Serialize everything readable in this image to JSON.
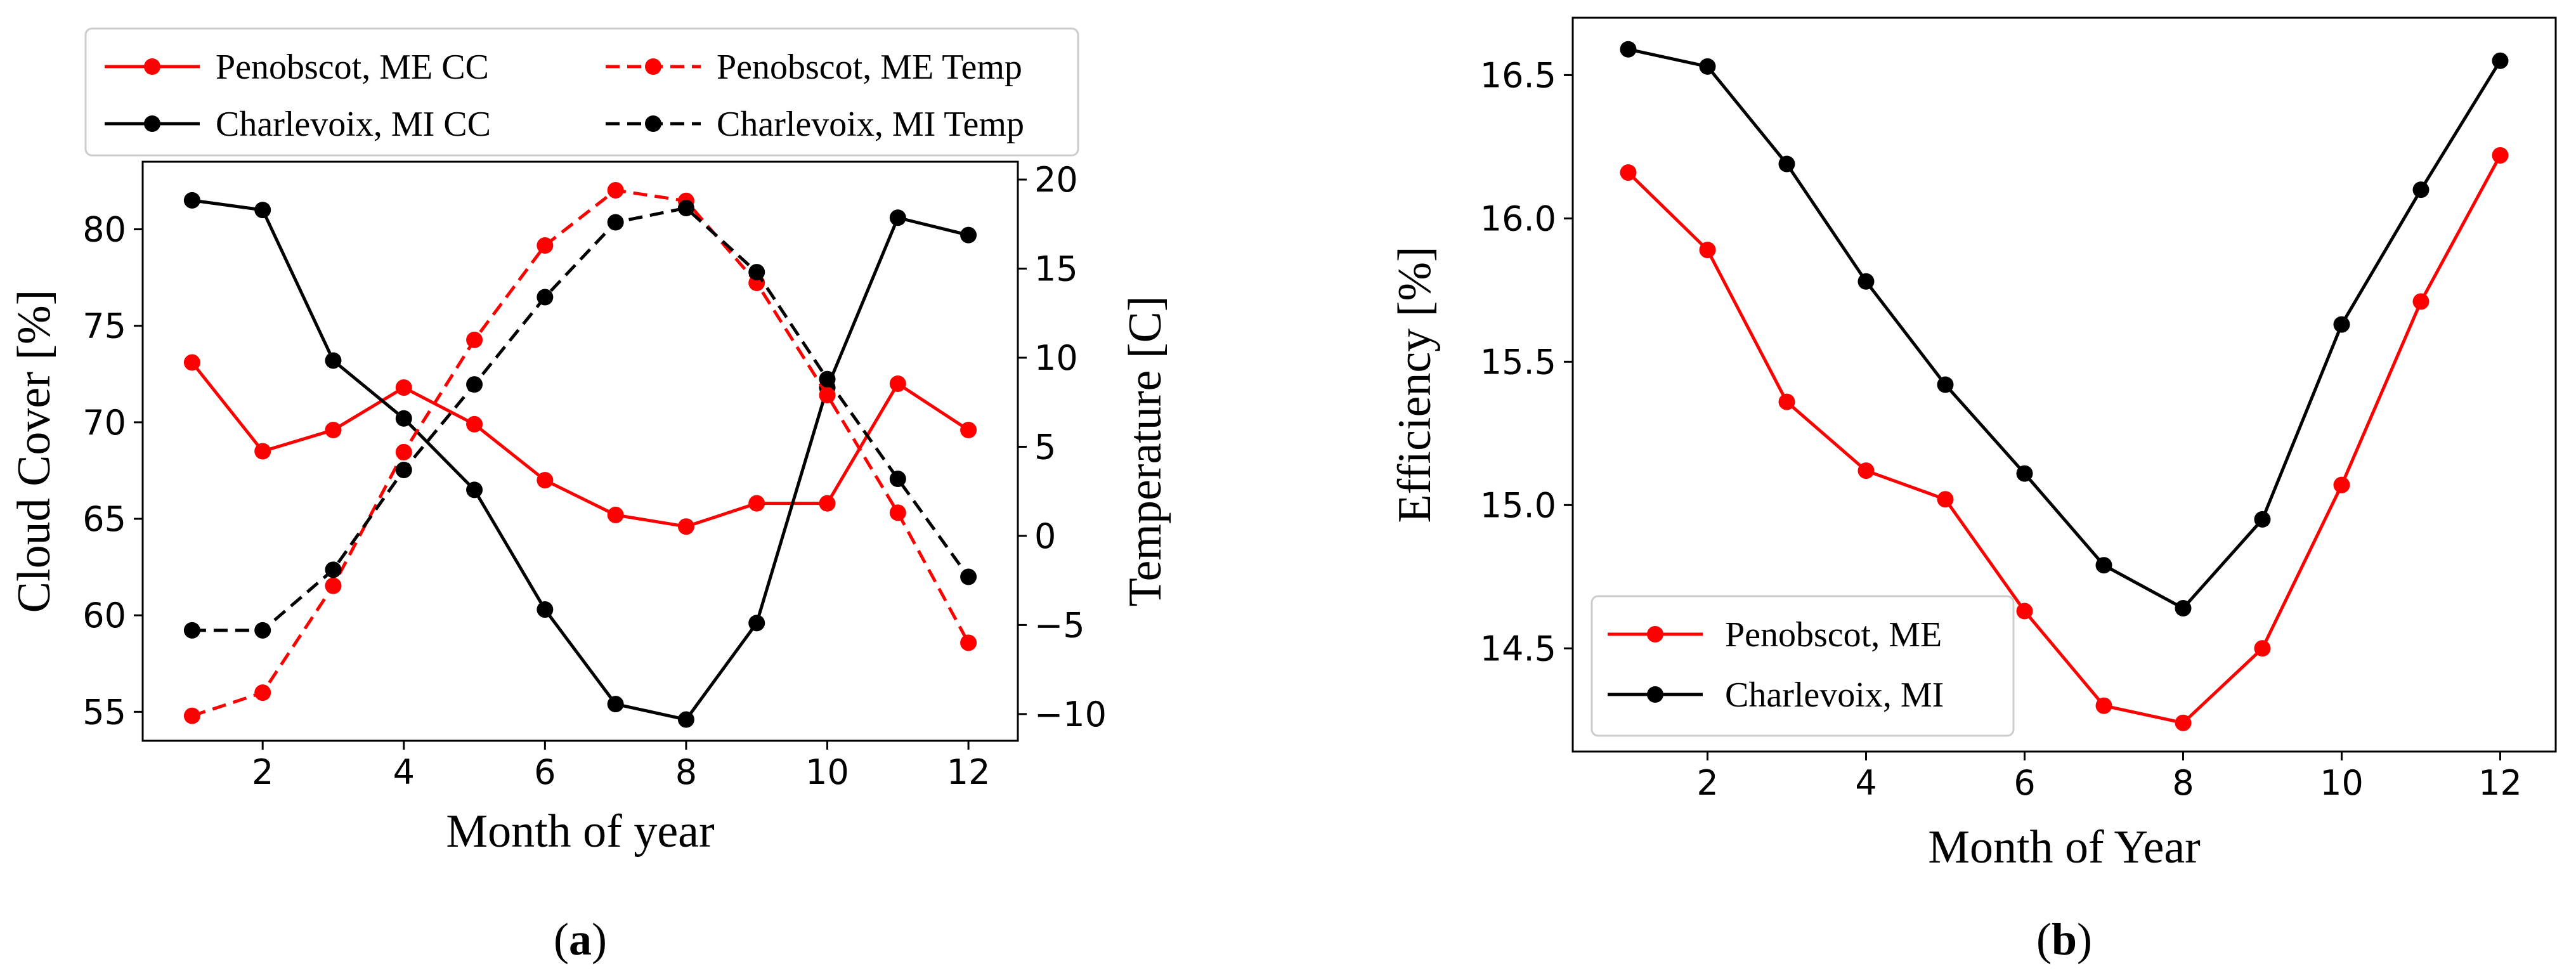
{
  "chart_data": [
    {
      "type": "line",
      "panel_label": "a",
      "xlabel": "Month of year",
      "ylabel_left": "Cloud Cover [%]",
      "ylabel_right": "Temperature [C]",
      "xlim": [
        0.3,
        12.7
      ],
      "ylim_left": [
        53.5,
        83.5
      ],
      "ylim_right": [
        -11.5,
        21
      ],
      "xticks": [
        2,
        4,
        6,
        8,
        10,
        12
      ],
      "yticks_left": [
        55,
        60,
        65,
        70,
        75,
        80
      ],
      "yticks_right": [
        -10,
        -5,
        0,
        5,
        10,
        15,
        20
      ],
      "legend_position": "above",
      "x": [
        1,
        2,
        3,
        4,
        5,
        6,
        7,
        8,
        9,
        10,
        11,
        12
      ],
      "series": [
        {
          "name": "Penobscot, ME CC",
          "axis": "left",
          "color": "#ff0000",
          "style": "solid",
          "values": [
            73.1,
            68.5,
            69.6,
            71.8,
            69.9,
            67.0,
            65.2,
            64.6,
            65.8,
            65.8,
            72.0,
            69.6
          ]
        },
        {
          "name": "Charlevoix, MI CC",
          "axis": "left",
          "color": "#000000",
          "style": "solid",
          "values": [
            81.5,
            81.0,
            73.2,
            70.2,
            66.5,
            60.3,
            55.4,
            54.6,
            59.6,
            71.8,
            80.6,
            79.7
          ]
        },
        {
          "name": "Penobscot, ME Temp",
          "axis": "right",
          "color": "#ff0000",
          "style": "dashed",
          "values": [
            -10.1,
            -8.8,
            -2.8,
            4.7,
            11.0,
            16.3,
            19.4,
            18.8,
            14.2,
            7.9,
            1.3,
            -6.0
          ]
        },
        {
          "name": "Charlevoix, MI Temp",
          "axis": "right",
          "color": "#000000",
          "style": "dashed",
          "values": [
            -5.3,
            -5.3,
            -1.9,
            3.7,
            8.5,
            13.4,
            17.6,
            18.4,
            14.8,
            8.8,
            3.2,
            -2.3
          ]
        }
      ]
    },
    {
      "type": "line",
      "panel_label": "b",
      "xlabel": "Month of Year",
      "ylabel": "Efficiency [%]",
      "xlim": [
        0.3,
        12.7
      ],
      "ylim": [
        14.14,
        16.7
      ],
      "xticks": [
        2,
        4,
        6,
        8,
        10,
        12
      ],
      "yticks": [
        14.5,
        15.0,
        15.5,
        16.0,
        16.5
      ],
      "ytick_labels": [
        "14.5",
        "15.0",
        "15.5",
        "16.0",
        "16.5"
      ],
      "legend_position": "lower-left",
      "x": [
        1,
        2,
        3,
        4,
        5,
        6,
        7,
        8,
        9,
        10,
        11,
        12
      ],
      "series": [
        {
          "name": "Penobscot, ME",
          "color": "#ff0000",
          "style": "solid",
          "values": [
            16.16,
            15.89,
            15.36,
            15.12,
            15.02,
            14.63,
            14.3,
            14.24,
            14.5,
            15.07,
            15.71,
            16.22
          ]
        },
        {
          "name": "Charlevoix, MI",
          "color": "#000000",
          "style": "solid",
          "values": [
            16.59,
            16.53,
            16.19,
            15.78,
            15.42,
            15.11,
            14.79,
            14.64,
            14.95,
            15.63,
            16.1,
            16.55
          ]
        }
      ]
    }
  ]
}
